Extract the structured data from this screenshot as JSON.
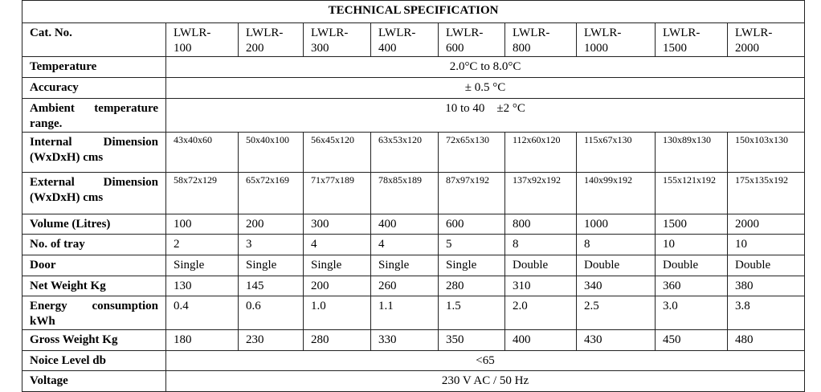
{
  "title": "TECHNICAL SPECIFICATION",
  "header": {
    "label": "Cat. No.",
    "models": [
      "LWLR-100",
      "LWLR-200",
      "LWLR-300",
      "LWLR-400",
      "LWLR-600",
      "LWLR-800",
      "LWLR-1000",
      "LWLR-1500",
      "LWLR-2000"
    ]
  },
  "rows": [
    {
      "label": "Temperature",
      "value": "2.0°C to 8.0°C"
    },
    {
      "label": "Accuracy",
      "value": "± 0.5 °C"
    },
    {
      "label": "Ambient temperature range.",
      "value": "10 to 40    ±2 °C"
    },
    {
      "label": "Internal Dimension (WxDxH) cms",
      "values": [
        "43x40x60",
        "50x40x100",
        "56x45x120",
        "63x53x120",
        "72x65x130",
        "112x60x120",
        "115x67x130",
        "130x89x130",
        "150x103x130"
      ]
    },
    {
      "label": "External Dimension (WxDxH) cms",
      "values": [
        "58x72x129",
        "65x72x169",
        "71x77x189",
        "78x85x189",
        "87x97x192",
        "137x92x192",
        "140x99x192",
        "155x121x192",
        "175x135x192"
      ]
    },
    {
      "label": "Volume (Litres)",
      "values": [
        "100",
        "200",
        "300",
        "400",
        "600",
        "800",
        "1000",
        "1500",
        "2000"
      ]
    },
    {
      "label": "No. of tray",
      "values": [
        "2",
        "3",
        "4",
        "4",
        "5",
        "8",
        "8",
        "10",
        "10"
      ]
    },
    {
      "label": "Door",
      "values": [
        "Single",
        "Single",
        "Single",
        "Single",
        "Single",
        "Double",
        "Double",
        "Double",
        "Double"
      ]
    },
    {
      "label": "Net Weight Kg",
      "values": [
        "130",
        "145",
        "200",
        "260",
        "280",
        "310",
        "340",
        "360",
        "380"
      ]
    },
    {
      "label": "Energy consumption kWh",
      "values": [
        "0.4",
        "0.6",
        "1.0",
        "1.1",
        "1.5",
        "2.0",
        "2.5",
        "3.0",
        "3.8"
      ]
    },
    {
      "label": "Gross Weight Kg",
      "values": [
        "180",
        "230",
        "280",
        "330",
        "350",
        "400",
        "430",
        "450",
        "480"
      ]
    },
    {
      "label": "Noice Level db",
      "value": "<65"
    },
    {
      "label": "Voltage",
      "value": "230 V AC / 50 Hz"
    }
  ]
}
